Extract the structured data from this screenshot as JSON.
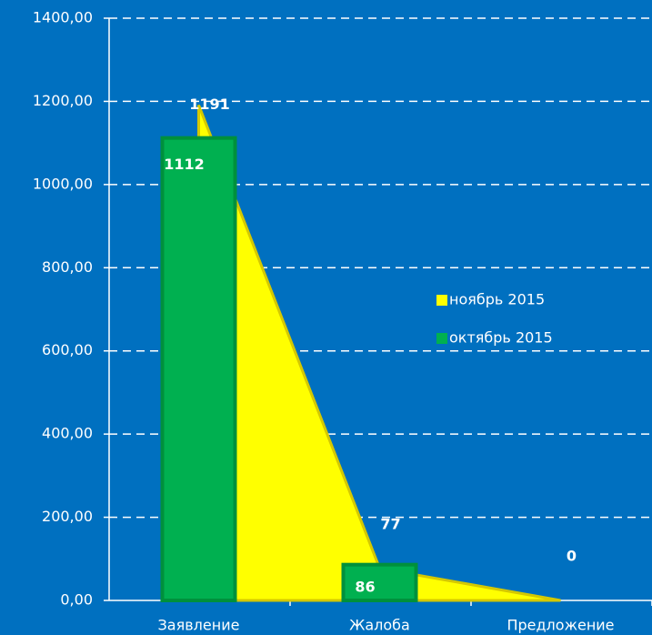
{
  "chart_data": {
    "type": "area_bar",
    "categories": [
      "Заявление",
      "Жалоба",
      "Предложение"
    ],
    "series": [
      {
        "name": "ноябрь 2015",
        "color": "#ffff00",
        "kind": "area",
        "values": [
          1191,
          77,
          0
        ]
      },
      {
        "name": "октябрь 2015",
        "color": "#00b050",
        "kind": "bar",
        "values": [
          1112,
          86,
          null
        ]
      }
    ],
    "ylim": [
      0,
      1400
    ],
    "yticks": [
      {
        "value": 0,
        "label": "0,00"
      },
      {
        "value": 200,
        "label": "200,00"
      },
      {
        "value": 400,
        "label": "400,00"
      },
      {
        "value": 600,
        "label": "600,00"
      },
      {
        "value": 800,
        "label": "800,00"
      },
      {
        "value": 1000,
        "label": "1000,00"
      },
      {
        "value": 1200,
        "label": "1200,00"
      },
      {
        "value": 1400,
        "label": "1400,00"
      }
    ],
    "grid": true,
    "legend": "right",
    "background": "#0070c0"
  }
}
